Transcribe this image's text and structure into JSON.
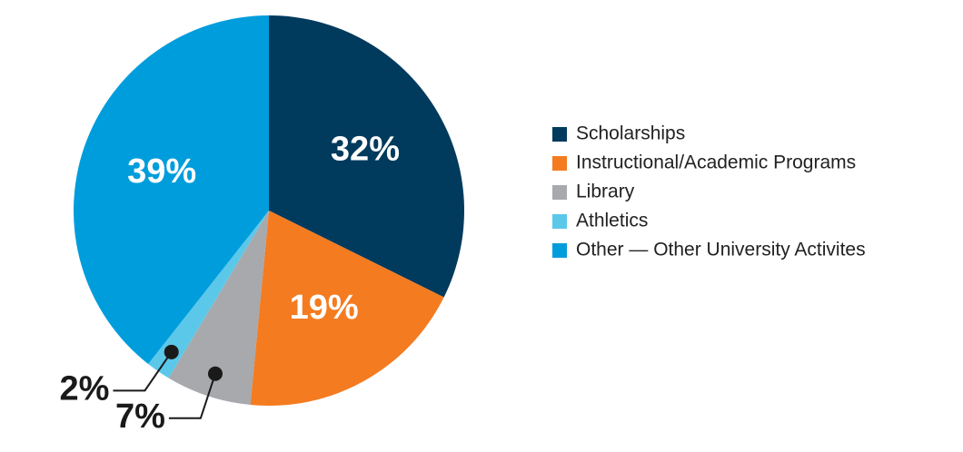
{
  "chart_data": {
    "type": "pie",
    "categories": [
      "Scholarships",
      "Instructional/Academic Programs",
      "Library",
      "Athletics",
      "Other — Other University Activites"
    ],
    "values": [
      32,
      19,
      7,
      2,
      39
    ],
    "value_labels": [
      "32%",
      "19%",
      "7%",
      "2%",
      "39%"
    ],
    "colors": [
      "#003a5d",
      "#f47b20",
      "#a7a9ac",
      "#5bc8ea",
      "#009ddc"
    ],
    "legend": "right"
  }
}
